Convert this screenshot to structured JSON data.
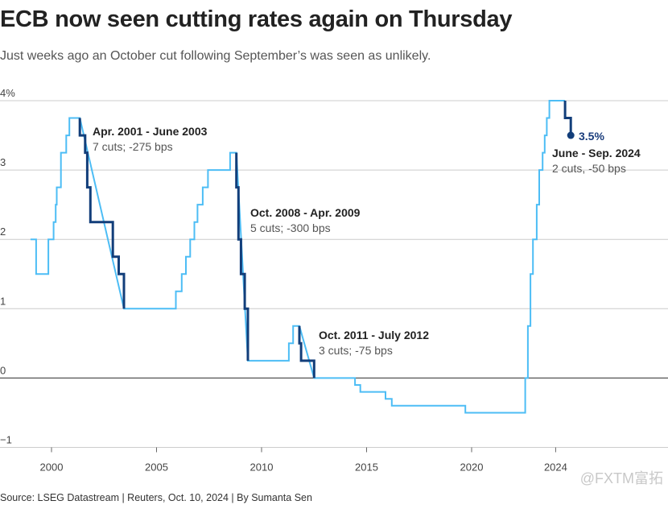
{
  "title": "ECB now seen cutting rates again on Thursday",
  "subtitle": "Just weeks ago an October cut following September’s was seen as unlikely.",
  "source": "Source: LSEG Datastream | Reuters, Oct. 10, 2024 | By Sumanta Sen",
  "watermark": "@FXTM富拓",
  "colors": {
    "light_series": "#4dbdf5",
    "dark_series": "#123e7a",
    "grid": "#cccccc",
    "zero_line": "#555555",
    "value_label": "#1a3d7c"
  },
  "chart_data": {
    "type": "line",
    "step": true,
    "xlim": [
      1998.5,
      2028.5
    ],
    "ylim": [
      -1,
      4
    ],
    "y_ticks": [
      {
        "value": 4,
        "label": "4%"
      },
      {
        "value": 3,
        "label": "3"
      },
      {
        "value": 2,
        "label": "2"
      },
      {
        "value": 1,
        "label": "1"
      },
      {
        "value": 0,
        "label": "0"
      },
      {
        "value": -1,
        "label": "−1"
      }
    ],
    "x_ticks": [
      {
        "value": 2000,
        "label": "2000"
      },
      {
        "value": 2005,
        "label": "2005"
      },
      {
        "value": 2010,
        "label": "2010"
      },
      {
        "value": 2015,
        "label": "2015"
      },
      {
        "value": 2020,
        "label": "2020"
      },
      {
        "value": 2024,
        "label": "2024"
      }
    ],
    "grid": true,
    "series": [
      {
        "style": "light",
        "points": [
          [
            1999.0,
            2.0
          ],
          [
            1999.27,
            2.0
          ],
          [
            1999.27,
            1.5
          ],
          [
            1999.85,
            1.5
          ],
          [
            1999.85,
            2.0
          ],
          [
            2000.1,
            2.0
          ],
          [
            2000.1,
            2.25
          ],
          [
            2000.2,
            2.25
          ],
          [
            2000.2,
            2.5
          ],
          [
            2000.25,
            2.5
          ],
          [
            2000.25,
            2.75
          ],
          [
            2000.45,
            2.75
          ],
          [
            2000.45,
            3.25
          ],
          [
            2000.7,
            3.25
          ],
          [
            2000.7,
            3.5
          ],
          [
            2000.85,
            3.5
          ],
          [
            2000.85,
            3.75
          ],
          [
            2001.35,
            3.75
          ],
          [
            2003.45,
            1.0
          ],
          [
            2005.92,
            1.0
          ],
          [
            2005.92,
            1.25
          ],
          [
            2006.2,
            1.25
          ],
          [
            2006.2,
            1.5
          ],
          [
            2006.4,
            1.5
          ],
          [
            2006.4,
            1.75
          ],
          [
            2006.6,
            1.75
          ],
          [
            2006.6,
            2.0
          ],
          [
            2006.8,
            2.0
          ],
          [
            2006.8,
            2.25
          ],
          [
            2006.95,
            2.25
          ],
          [
            2006.95,
            2.5
          ],
          [
            2007.2,
            2.5
          ],
          [
            2007.2,
            2.75
          ],
          [
            2007.45,
            2.75
          ],
          [
            2007.45,
            3.0
          ],
          [
            2008.5,
            3.0
          ],
          [
            2008.5,
            3.25
          ],
          [
            2008.8,
            3.25
          ],
          [
            2009.35,
            0.25
          ],
          [
            2011.3,
            0.25
          ],
          [
            2011.3,
            0.5
          ],
          [
            2011.5,
            0.5
          ],
          [
            2011.5,
            0.75
          ],
          [
            2011.8,
            0.75
          ],
          [
            2012.5,
            0.0
          ],
          [
            2014.45,
            0.0
          ],
          [
            2014.45,
            -0.1
          ],
          [
            2014.7,
            -0.1
          ],
          [
            2014.7,
            -0.2
          ],
          [
            2015.9,
            -0.2
          ],
          [
            2015.9,
            -0.3
          ],
          [
            2016.2,
            -0.3
          ],
          [
            2016.2,
            -0.4
          ],
          [
            2019.7,
            -0.4
          ],
          [
            2019.7,
            -0.5
          ],
          [
            2022.55,
            -0.5
          ],
          [
            2022.55,
            0.0
          ],
          [
            2022.68,
            0.0
          ],
          [
            2022.68,
            0.75
          ],
          [
            2022.8,
            0.75
          ],
          [
            2022.8,
            1.5
          ],
          [
            2022.92,
            1.5
          ],
          [
            2022.92,
            2.0
          ],
          [
            2023.1,
            2.0
          ],
          [
            2023.1,
            2.5
          ],
          [
            2023.22,
            2.5
          ],
          [
            2023.22,
            3.0
          ],
          [
            2023.38,
            3.0
          ],
          [
            2023.38,
            3.25
          ],
          [
            2023.48,
            3.25
          ],
          [
            2023.48,
            3.5
          ],
          [
            2023.58,
            3.5
          ],
          [
            2023.58,
            3.75
          ],
          [
            2023.7,
            3.75
          ],
          [
            2023.7,
            4.0
          ],
          [
            2024.45,
            4.0
          ]
        ]
      },
      {
        "style": "dark",
        "points": [
          [
            2001.35,
            3.75
          ],
          [
            2001.35,
            3.5
          ],
          [
            2001.6,
            3.5
          ],
          [
            2001.6,
            3.25
          ],
          [
            2001.7,
            3.25
          ],
          [
            2001.7,
            2.75
          ],
          [
            2001.85,
            2.75
          ],
          [
            2001.85,
            2.25
          ],
          [
            2002.92,
            2.25
          ],
          [
            2002.92,
            1.75
          ],
          [
            2003.2,
            1.75
          ],
          [
            2003.2,
            1.5
          ],
          [
            2003.45,
            1.5
          ],
          [
            2003.45,
            1.0
          ]
        ]
      },
      {
        "style": "dark",
        "points": [
          [
            2008.8,
            3.25
          ],
          [
            2008.8,
            2.75
          ],
          [
            2008.9,
            2.75
          ],
          [
            2008.9,
            2.0
          ],
          [
            2009.02,
            2.0
          ],
          [
            2009.02,
            1.5
          ],
          [
            2009.2,
            1.5
          ],
          [
            2009.2,
            1.0
          ],
          [
            2009.35,
            1.0
          ],
          [
            2009.35,
            0.75
          ],
          [
            2009.35,
            0.25
          ]
        ]
      },
      {
        "style": "dark",
        "points": [
          [
            2011.8,
            0.75
          ],
          [
            2011.8,
            0.5
          ],
          [
            2011.88,
            0.5
          ],
          [
            2011.88,
            0.25
          ],
          [
            2012.5,
            0.25
          ],
          [
            2012.5,
            0.0
          ]
        ]
      },
      {
        "style": "dark",
        "points": [
          [
            2024.45,
            4.0
          ],
          [
            2024.45,
            3.75
          ],
          [
            2024.72,
            3.75
          ],
          [
            2024.72,
            3.5
          ]
        ]
      }
    ],
    "end_point": {
      "x": 2024.72,
      "y": 3.5,
      "label": "3.5%"
    },
    "annotations": [
      {
        "title": "Apr. 2001 - June 2003",
        "sub": "7 cuts; -275 bps"
      },
      {
        "title": "Oct. 2008 - Apr. 2009",
        "sub": "5 cuts; -300 bps"
      },
      {
        "title": "Oct. 2011 - July 2012",
        "sub": "3 cuts; -75 bps"
      },
      {
        "title": "June - Sep. 2024",
        "sub": "2 cuts, -50 bps"
      }
    ]
  }
}
